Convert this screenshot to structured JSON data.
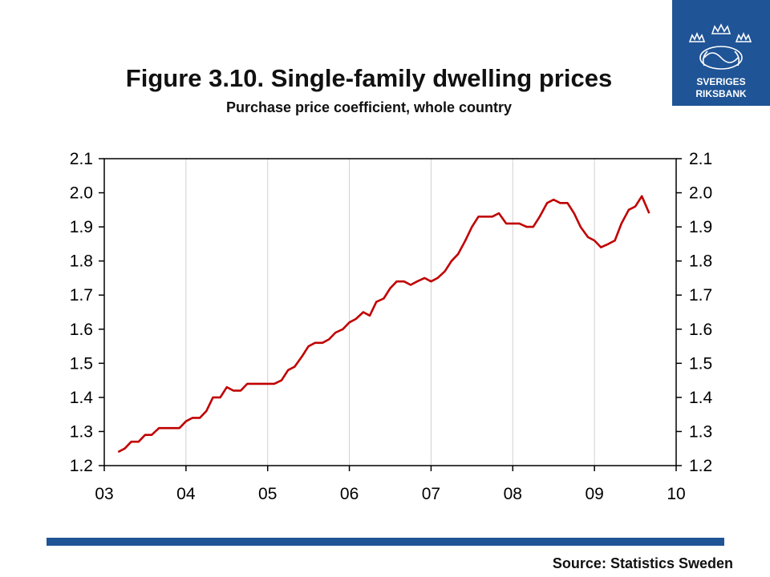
{
  "header": {
    "title": "Figure 3.10. Single-family dwelling prices",
    "subtitle": "Purchase price coefficient, whole country"
  },
  "logo": {
    "line1": "SVERIGES",
    "line2": "RIKSBANK",
    "icon": "riksbank-crown-seal-icon",
    "background": "#1f5496"
  },
  "footer": {
    "source": "Source: Statistics Sweden",
    "bar_color": "#1f5496"
  },
  "chart_data": {
    "type": "line",
    "title": "Figure 3.10. Single-family dwelling prices",
    "subtitle": "Purchase price coefficient, whole country",
    "xlabel": "",
    "ylabel": "",
    "x_tick_labels": [
      "03",
      "04",
      "05",
      "06",
      "07",
      "08",
      "09",
      "10"
    ],
    "y_tick_labels": [
      "1.2",
      "1.3",
      "1.4",
      "1.5",
      "1.6",
      "1.7",
      "1.8",
      "1.9",
      "2.0",
      "2.1"
    ],
    "xlim": [
      2003,
      2010
    ],
    "ylim": [
      1.2,
      2.1
    ],
    "grid": "vertical",
    "line_color": "#c00000",
    "series": [
      {
        "x": [
          2003.17,
          2003.25,
          2003.33,
          2003.42,
          2003.5,
          2003.58,
          2003.67,
          2003.75,
          2003.83,
          2003.92,
          2004.0,
          2004.08,
          2004.17,
          2004.25,
          2004.33,
          2004.42,
          2004.5,
          2004.58,
          2004.67,
          2004.75,
          2004.83,
          2004.92,
          2005.0,
          2005.08,
          2005.17,
          2005.25,
          2005.33,
          2005.42,
          2005.5,
          2005.58,
          2005.67,
          2005.75,
          2005.83,
          2005.92,
          2006.0,
          2006.08,
          2006.17,
          2006.25,
          2006.33,
          2006.42,
          2006.5,
          2006.58,
          2006.67,
          2006.75,
          2006.83,
          2006.92,
          2007.0,
          2007.08,
          2007.17,
          2007.25,
          2007.33,
          2007.42,
          2007.5,
          2007.58,
          2007.67,
          2007.75,
          2007.83,
          2007.92,
          2008.0,
          2008.08,
          2008.17,
          2008.25,
          2008.33,
          2008.42,
          2008.5,
          2008.58,
          2008.67,
          2008.75,
          2008.83,
          2008.92,
          2009.0,
          2009.08,
          2009.17,
          2009.25,
          2009.33,
          2009.42,
          2009.5,
          2009.58,
          2009.67
        ],
        "values": [
          1.24,
          1.25,
          1.27,
          1.27,
          1.29,
          1.29,
          1.31,
          1.31,
          1.31,
          1.31,
          1.33,
          1.34,
          1.34,
          1.36,
          1.4,
          1.4,
          1.43,
          1.42,
          1.42,
          1.44,
          1.44,
          1.44,
          1.44,
          1.44,
          1.45,
          1.48,
          1.49,
          1.52,
          1.55,
          1.56,
          1.56,
          1.57,
          1.59,
          1.6,
          1.62,
          1.63,
          1.65,
          1.64,
          1.68,
          1.69,
          1.72,
          1.74,
          1.74,
          1.73,
          1.74,
          1.75,
          1.74,
          1.75,
          1.77,
          1.8,
          1.82,
          1.86,
          1.9,
          1.93,
          1.93,
          1.93,
          1.94,
          1.91,
          1.91,
          1.91,
          1.9,
          1.9,
          1.93,
          1.97,
          1.98,
          1.97,
          1.97,
          1.94,
          1.9,
          1.87,
          1.86,
          1.84,
          1.85,
          1.86,
          1.91,
          1.95,
          1.96,
          1.99,
          1.94
        ]
      }
    ]
  }
}
